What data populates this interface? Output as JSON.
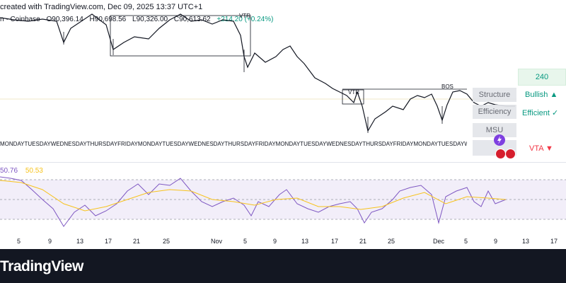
{
  "header": {
    "created_text": "created with TradingView.com, Dec 09, 2025 13:37 UTC+1",
    "symbol_suffix": "n · Coinbase",
    "open": "O90,396.14",
    "high": "H90,698.56",
    "low": "L90,326.00",
    "close": "C90,613.62",
    "change": "+214.20 (+0.24%)"
  },
  "price_panel": {
    "price_tag": "240",
    "structure_label": "Structure",
    "bullish_label": "Bullish ▲",
    "efficiency_label": "Efficiency",
    "efficient_label": "Efficient ✓",
    "msu_label": "MSU",
    "vta_label": "VTA ▼",
    "vtr_top_label": "VTR",
    "vtr_mid_label": "VTR",
    "bos_label": "BOS",
    "row_label_text": "MONDAYTUESDAYWEDNESDAYTHURSDAYFRIDAYMONDAYTUESDAYWEDNESDAYTHURSDAYFRIDAYMONDAYTUESDAYWEDNESDAYTHURSDAYFRIDAYMONDAYTUESDAYWEDNESDAYTHURSDAYFRIDAYMONDAYTUESDAYWEDNESDAYTHURSDAYFRIDAYMONDAYTUESDAYWEDNESDAYTHURSDAYFRIDAYMONDAYTUESDAYWEDNESDAYTHURSDAYFRIDAYMONDAY"
  },
  "rsi": {
    "rsi_value": "50.76",
    "ma_value": "50.53"
  },
  "x_axis": {
    "ticks": [
      "5",
      "9",
      "13",
      "17",
      "21",
      "25",
      "Nov",
      "5",
      "9",
      "13",
      "17",
      "21",
      "25",
      "Dec",
      "5",
      "9",
      "13",
      "17"
    ]
  },
  "footer": {
    "logo_text": "TradingView"
  },
  "colors": {
    "up": "#089981",
    "down": "#f23645",
    "rsi_line": "#7e57c2",
    "rsi_ma": "#f7c31d"
  }
}
